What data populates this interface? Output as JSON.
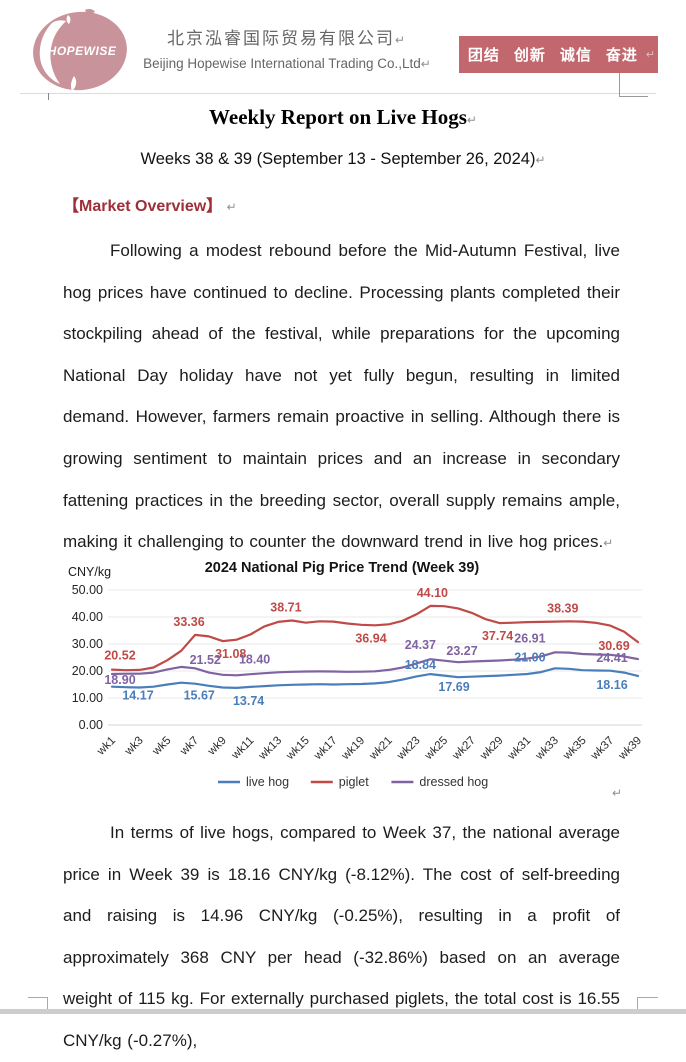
{
  "header": {
    "logo_text": "HOPEWISE",
    "company_name_zh": "北京泓睿国际贸易有限公司",
    "company_name_en": "Beijing Hopewise International Trading Co.,Ltd",
    "banner_slogans": [
      "团结",
      "创新",
      "诚信",
      "奋进"
    ],
    "colors": {
      "banner_bg": "#c2676d",
      "logo_pink": "#c9939b",
      "company_text": "#666666"
    }
  },
  "document": {
    "title": "Weekly Report on Live Hogs",
    "subtitle": "Weeks 38 & 39 (September 13 - September 26, 2024)",
    "section_heading": "【Market Overview】",
    "heading_color": "#9e2f38",
    "pilcrow": "↵",
    "paragraph1": "Following a modest rebound before the Mid-Autumn Festival, live hog prices have continued to decline. Processing plants completed their stockpiling ahead of the festival, while preparations for the upcoming National Day holiday have not yet fully begun, resulting in limited demand. However, farmers remain proactive in selling. Although there is growing sentiment to maintain prices and an increase in secondary fattening practices in the breeding sector, overall supply remains ample, making it challenging to counter the downward trend in live hog prices.",
    "paragraph2": "In terms of live hogs, compared to Week 37, the national average price in Week 39 is 18.16 CNY/kg (-8.12%). The cost of self-breeding and raising is 14.96 CNY/kg (-0.25%), resulting in a profit of approximately 368 CNY per head (-32.86%) based on an average weight of 115 kg. For externally purchased piglets, the total cost is 16.55 CNY/kg (-0.27%),"
  },
  "chart_data": {
    "type": "line",
    "title": "2024 National Pig Price Trend (Week 39)",
    "xlabel": "",
    "ylabel": "CNY/kg",
    "ylim": [
      0,
      50
    ],
    "yticks": [
      "50.00",
      "40.00",
      "30.00",
      "20.00",
      "10.00",
      "0.00"
    ],
    "x_tick_labels": [
      "wk1",
      "wk3",
      "wk5",
      "wk7",
      "wk9",
      "wk11",
      "wk13",
      "wk15",
      "wk17",
      "wk19",
      "wk21",
      "wk23",
      "wk25",
      "wk27",
      "wk29",
      "wk31",
      "wk33",
      "wk35",
      "wk37",
      "wk39"
    ],
    "weeks": 39,
    "grid": true,
    "legend_position": "bottom",
    "series": [
      {
        "name": "live hog",
        "color": "#4a7ebb",
        "values": [
          14.17,
          14.0,
          13.9,
          14.2,
          15.0,
          15.67,
          15.3,
          14.5,
          13.9,
          13.74,
          14.1,
          14.4,
          14.7,
          14.9,
          15.0,
          15.1,
          15.0,
          15.1,
          15.2,
          15.4,
          15.9,
          16.8,
          18.0,
          18.84,
          18.3,
          17.69,
          17.9,
          18.1,
          18.3,
          18.6,
          18.9,
          19.6,
          21.0,
          20.8,
          20.3,
          20.2,
          20.1,
          19.4,
          18.16
        ],
        "labels": [
          {
            "week": 1,
            "text": "14.17",
            "dx": 26,
            "dy": 13
          },
          {
            "week": 6,
            "text": "15.67",
            "dx": 18,
            "dy": 17
          },
          {
            "week": 10,
            "text": "13.74",
            "dx": 12,
            "dy": 17
          },
          {
            "week": 24,
            "text": "18.84",
            "dx": -10,
            "dy": -5
          },
          {
            "week": 26,
            "text": "17.69",
            "dx": -4,
            "dy": 14
          },
          {
            "week": 33,
            "text": "21.00",
            "dx": -25,
            "dy": -7
          },
          {
            "week": 39,
            "text": "18.16",
            "dx": -26,
            "dy": 13
          }
        ]
      },
      {
        "name": "piglet",
        "color": "#bf4a47",
        "values": [
          20.52,
          20.3,
          20.4,
          21.3,
          24.0,
          27.5,
          33.36,
          32.8,
          31.08,
          31.6,
          33.5,
          36.5,
          38.2,
          38.71,
          37.9,
          38.4,
          38.3,
          37.6,
          37.1,
          36.94,
          37.3,
          38.6,
          41.0,
          44.1,
          44.0,
          43.2,
          41.5,
          39.2,
          37.74,
          37.9,
          38.1,
          38.2,
          38.3,
          38.39,
          38.3,
          37.8,
          36.8,
          34.5,
          30.69
        ],
        "labels": [
          {
            "week": 1,
            "text": "20.52",
            "dx": 8,
            "dy": -10
          },
          {
            "week": 7,
            "text": "33.36",
            "dx": -6,
            "dy": -9
          },
          {
            "week": 9,
            "text": "31.08",
            "dx": 8,
            "dy": 17
          },
          {
            "week": 14,
            "text": "38.71",
            "dx": -6,
            "dy": -9
          },
          {
            "week": 20,
            "text": "36.94",
            "dx": -4,
            "dy": 17
          },
          {
            "week": 24,
            "text": "44.10",
            "dx": 2,
            "dy": -9
          },
          {
            "week": 29,
            "text": "37.74",
            "dx": -2,
            "dy": 17
          },
          {
            "week": 34,
            "text": "38.39",
            "dx": -6,
            "dy": -9
          },
          {
            "week": 39,
            "text": "30.69",
            "dx": -24,
            "dy": 8
          }
        ]
      },
      {
        "name": "dressed hog",
        "color": "#7f63a2",
        "values": [
          18.9,
          19.0,
          19.0,
          19.4,
          20.6,
          21.52,
          21.0,
          19.4,
          18.6,
          18.4,
          18.8,
          19.2,
          19.5,
          19.7,
          19.8,
          19.85,
          19.8,
          19.7,
          19.75,
          19.9,
          20.4,
          21.3,
          22.8,
          24.37,
          23.8,
          23.27,
          23.5,
          23.7,
          23.9,
          24.2,
          24.6,
          25.4,
          26.91,
          26.8,
          26.3,
          26.1,
          26.0,
          25.4,
          24.41
        ],
        "labels": [
          {
            "week": 1,
            "text": "18.90",
            "dx": 8,
            "dy": 10
          },
          {
            "week": 6,
            "text": "21.52",
            "dx": 24,
            "dy": -3
          },
          {
            "week": 10,
            "text": "18.40",
            "dx": 18,
            "dy": -12
          },
          {
            "week": 24,
            "text": "24.37",
            "dx": -10,
            "dy": -10
          },
          {
            "week": 26,
            "text": "23.27",
            "dx": 4,
            "dy": -7
          },
          {
            "week": 33,
            "text": "26.91",
            "dx": -25,
            "dy": -10
          },
          {
            "week": 39,
            "text": "24.41",
            "dx": -26,
            "dy": 3
          }
        ]
      }
    ]
  }
}
